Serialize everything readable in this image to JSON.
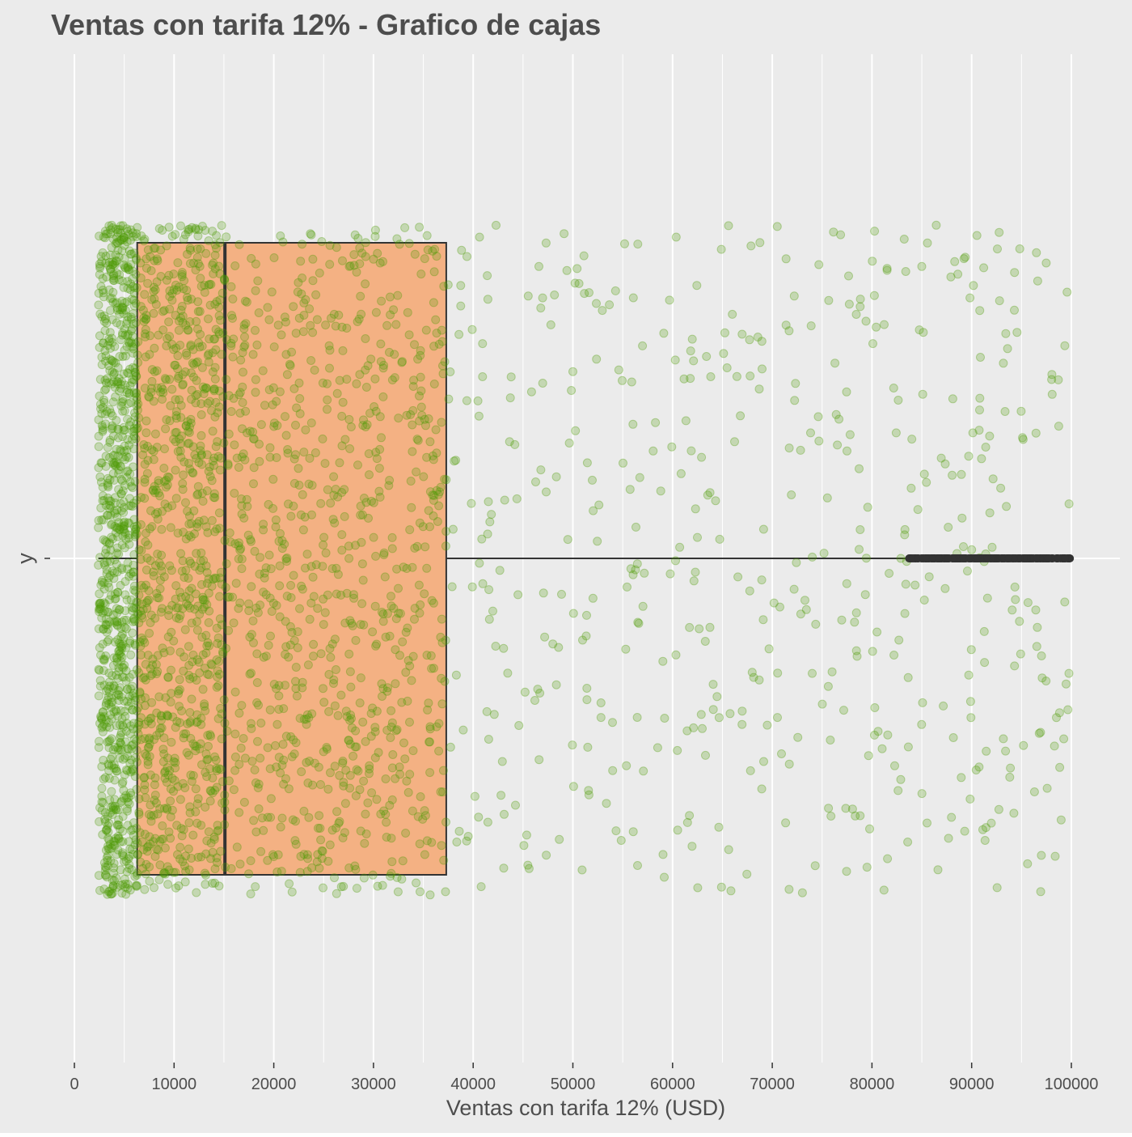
{
  "chart_data": {
    "type": "boxplot",
    "title": "Ventas con tarifa 12% - Grafico de cajas",
    "xlabel": "Ventas con tarifa 12% (USD)",
    "ylabel": "y",
    "xlim": [
      0,
      100000
    ],
    "x_ticks": [
      0,
      10000,
      20000,
      30000,
      40000,
      50000,
      60000,
      70000,
      80000,
      90000,
      100000
    ],
    "x_tick_labels": [
      "0",
      "10000",
      "20000",
      "30000",
      "40000",
      "50000",
      "60000",
      "70000",
      "80000",
      "90000",
      "100000"
    ],
    "y_ticks": [
      "y"
    ],
    "box": {
      "lower_whisker": 2400,
      "q1": 6300,
      "median": 15100,
      "q3": 37300,
      "upper_whisker": 83700,
      "outliers_range": [
        83700,
        100000
      ]
    },
    "jitter_points": {
      "description_range": [
        2400,
        100000
      ],
      "approx_count": 3000
    },
    "grid": true,
    "colors": {
      "panel_background": "#ebebeb",
      "gridline": "#ffffff",
      "box_fill": "#f4b183",
      "box_outline": "#333333",
      "jitter_point": "#4e9a06",
      "outlier_point": "#333333",
      "text": "#4d4d4d"
    }
  }
}
